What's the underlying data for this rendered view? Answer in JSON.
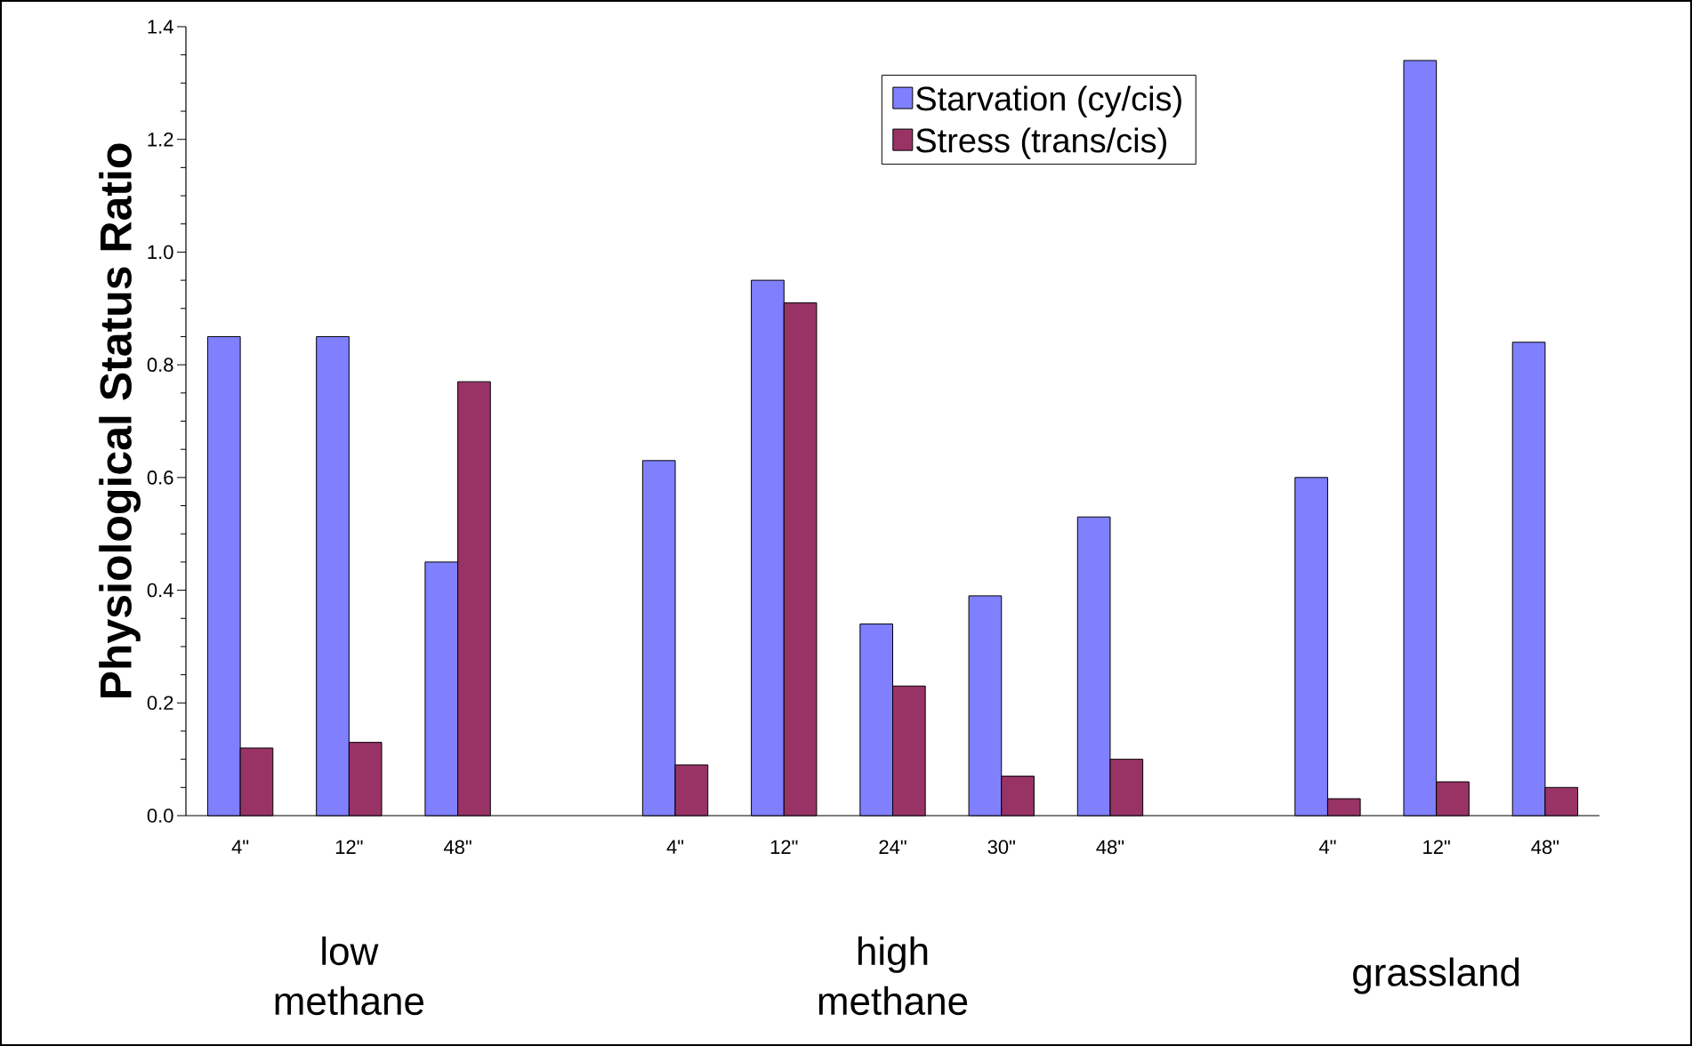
{
  "chart_data": {
    "type": "bar",
    "ylabel": "Physiological Status Ratio",
    "categories": [
      "4\"",
      "12\"",
      "48\"",
      null,
      "4\"",
      "12\"",
      "24\"",
      "30\"",
      "48\"",
      null,
      "4\"",
      "12\"",
      "48\""
    ],
    "series": [
      {
        "name": "Starvation (cy/cis)",
        "color": "#8080ff",
        "values": [
          0.85,
          0.85,
          0.45,
          null,
          0.63,
          0.95,
          0.34,
          0.39,
          0.53,
          null,
          0.6,
          1.34,
          0.84
        ]
      },
      {
        "name": "Stress (trans/cis)",
        "color": "#993366",
        "values": [
          0.12,
          0.13,
          0.77,
          null,
          0.09,
          0.91,
          0.23,
          0.07,
          0.1,
          null,
          0.03,
          0.06,
          0.05
        ]
      }
    ],
    "ylim": [
      0,
      1.4
    ],
    "yticks": [
      {
        "value": 0,
        "label": "0.0"
      },
      {
        "value": 0.2,
        "label": "0.2"
      },
      {
        "value": 0.4,
        "label": "0.4"
      },
      {
        "value": 0.6,
        "label": "0.6"
      },
      {
        "value": 0.8,
        "label": "0.8"
      },
      {
        "value": 1.0,
        "label": "1.0"
      },
      {
        "value": 1.2,
        "label": "1.2"
      },
      {
        "value": 1.4,
        "label": "1.4"
      }
    ],
    "legend": "top right",
    "annotations": [
      "low methane",
      "high methane",
      "grassland"
    ]
  }
}
